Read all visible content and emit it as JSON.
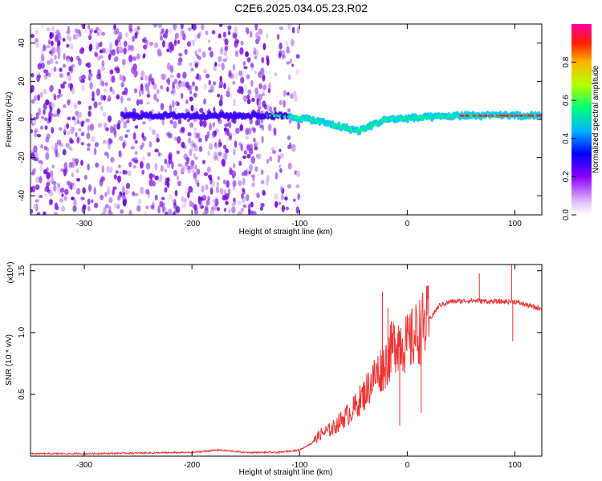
{
  "title": "C2E6.2025.034.05.23.R02",
  "chart_data": [
    {
      "type": "heatmap",
      "xlabel": "Height of straight line (km)",
      "ylabel": "Frequency (Hz)",
      "xlim": [
        -350,
        125
      ],
      "ylim": [
        -50,
        50
      ],
      "x_ticks": [
        -300,
        -200,
        -100,
        0,
        100
      ],
      "y_ticks": [
        -40,
        -20,
        0,
        20,
        40
      ],
      "colorbar": {
        "label": "Normalized spectral amplitude",
        "range": [
          0,
          1
        ],
        "ticks": [
          0,
          0.2,
          0.4,
          0.6,
          0.8
        ],
        "colors": [
          "#e8c8f8",
          "#7a00e6",
          "#0000ff",
          "#00c8ff",
          "#00ff64",
          "#c8ff00",
          "#ffc800",
          "#ff0000",
          "#ff00a0"
        ]
      },
      "regions": [
        {
          "description": "broadband noise",
          "x": [
            -350,
            -130
          ],
          "y": [
            -50,
            50
          ]
        },
        {
          "description": "sparse noise",
          "x": [
            -130,
            -100
          ],
          "y": [
            -50,
            50
          ]
        },
        {
          "description": "narrow signal band",
          "x": [
            -265,
            125
          ],
          "y_center": [
            2,
            2,
            2,
            0,
            -6,
            0,
            2,
            2
          ],
          "x_center": [
            -265,
            -150,
            -120,
            -90,
            -45,
            -20,
            50,
            125
          ]
        }
      ]
    },
    {
      "type": "line",
      "xlabel": "Height of straight line (km)",
      "ylabel": "SNR (10 * v/v)",
      "y_multiplier": "(x10⁴)",
      "xlim": [
        -350,
        125
      ],
      "ylim": [
        0,
        1.55
      ],
      "x_ticks": [
        -300,
        -200,
        -100,
        0,
        100
      ],
      "y_ticks": [
        0.5,
        1.0,
        1.5
      ],
      "y_tick_labels": [
        "0.5",
        "1.0",
        "1.5"
      ],
      "color": "#ee3333",
      "x": [
        -350,
        -300,
        -250,
        -200,
        -175,
        -150,
        -120,
        -100,
        -90,
        -80,
        -70,
        -60,
        -50,
        -40,
        -30,
        -20,
        -10,
        0,
        10,
        20,
        30,
        40,
        60,
        80,
        100,
        120,
        125
      ],
      "y": [
        0.02,
        0.02,
        0.025,
        0.03,
        0.05,
        0.03,
        0.03,
        0.05,
        0.1,
        0.18,
        0.22,
        0.3,
        0.38,
        0.5,
        0.65,
        0.75,
        0.95,
        0.9,
        1.0,
        1.1,
        1.22,
        1.25,
        1.26,
        1.25,
        1.25,
        1.2,
        1.2
      ],
      "spikes": [
        {
          "x": -23,
          "y": 1.33
        },
        {
          "x": -18,
          "y": 1.2
        },
        {
          "x": -10,
          "y": 0.95
        },
        {
          "x": 67,
          "y": 1.48
        },
        {
          "x": 97,
          "y": 1.55
        },
        {
          "x": 98,
          "y": 0.93
        },
        {
          "x": 13,
          "y": 0.35
        },
        {
          "x": -7,
          "y": 0.25
        }
      ]
    }
  ]
}
